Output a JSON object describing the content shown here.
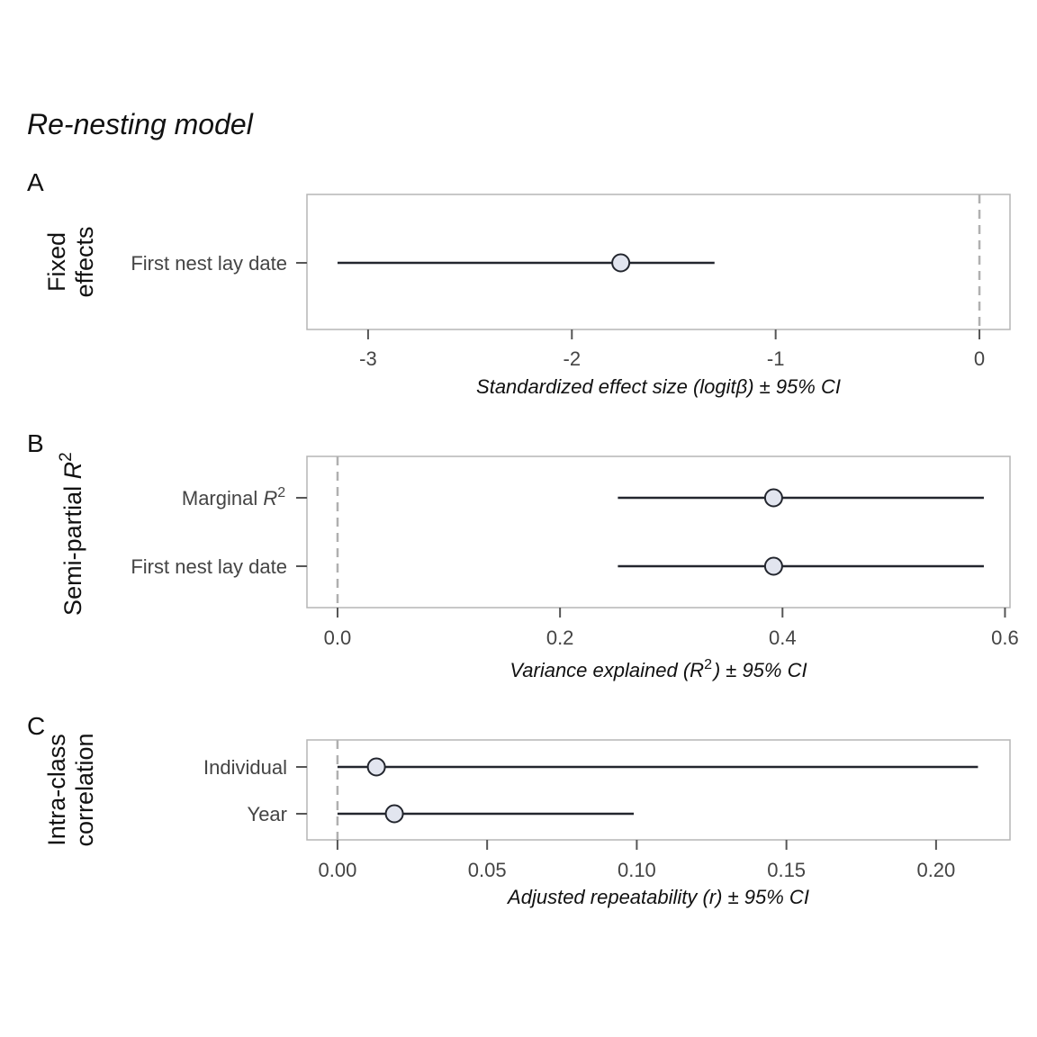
{
  "title": "Re-nesting model",
  "chart_data": [
    {
      "type": "scatter",
      "panel": "A",
      "side_label": [
        "Fixed",
        "effects"
      ],
      "xlabel": "Standardized effect size (logitβ) ± 95% CI",
      "xlim": [
        -3.3,
        0.15
      ],
      "xticks": [
        -3,
        -2,
        -1,
        0
      ],
      "xtick_labels": [
        "-3",
        "-2",
        "-1",
        "0"
      ],
      "reference_line": 0,
      "categories": [
        "First nest lay date"
      ],
      "estimates": [
        -1.76
      ],
      "ci_low": [
        -3.15
      ],
      "ci_high": [
        -1.3
      ]
    },
    {
      "type": "scatter",
      "panel": "B",
      "side_label": [
        "Semi-partial R²"
      ],
      "xlabel": "Variance explained (R²) ± 95% CI",
      "xlim": [
        -0.0275,
        0.6045
      ],
      "xticks": [
        0.0,
        0.2,
        0.4,
        0.6
      ],
      "xtick_labels": [
        "0.0",
        "0.2",
        "0.4",
        "0.6"
      ],
      "reference_line": 0,
      "categories": [
        "Marginal R²",
        "First nest lay date"
      ],
      "estimates": [
        0.392,
        0.392
      ],
      "ci_low": [
        0.252,
        0.252
      ],
      "ci_high": [
        0.581,
        0.581
      ]
    },
    {
      "type": "scatter",
      "panel": "C",
      "side_label": [
        "Intra-class",
        "correlation"
      ],
      "xlabel": "Adjusted repeatability (r) ± 95% CI",
      "xlim": [
        -0.0102,
        0.2247
      ],
      "xticks": [
        0.0,
        0.05,
        0.1,
        0.15,
        0.2
      ],
      "xtick_labels": [
        "0.00",
        "0.05",
        "0.10",
        "0.15",
        "0.20"
      ],
      "reference_line": 0,
      "categories": [
        "Individual",
        "Year"
      ],
      "estimates": [
        0.013,
        0.019
      ],
      "ci_low": [
        0.0,
        0.0
      ],
      "ci_high": [
        0.214,
        0.099
      ]
    }
  ]
}
